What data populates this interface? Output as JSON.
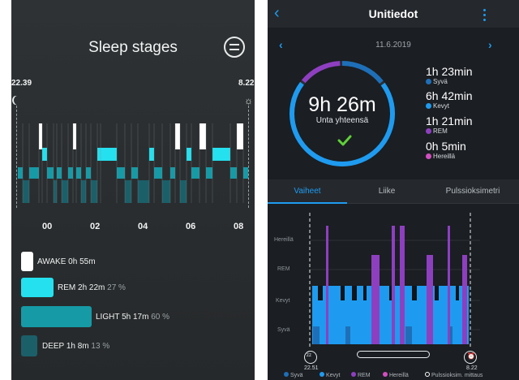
{
  "left_app": {
    "title": "Sleep stages",
    "start_time": "22.39",
    "end_time": "8.22",
    "hour_labels": [
      "00",
      "02",
      "04",
      "06",
      "08"
    ],
    "stages": [
      {
        "label": "AWAKE",
        "duration": "0h 55m",
        "percent": "",
        "color": "#ffffff"
      },
      {
        "label": "REM",
        "duration": "2h 22m",
        "percent": "27 %",
        "color": "#25e0ee"
      },
      {
        "label": "LIGHT",
        "duration": "5h 17m",
        "percent": "60 %",
        "color": "#169aa6"
      },
      {
        "label": "DEEP",
        "duration": "1h 8m",
        "percent": "13 %",
        "color": "#1b5f69"
      }
    ]
  },
  "right_app": {
    "header_title": "Unitiedot",
    "date": "11.6.2019",
    "total_value": "9h 26m",
    "total_label": "Unta yhteensä",
    "stats": [
      {
        "value": "1h 23min",
        "label": "Syvä",
        "color": "#1e6fb8"
      },
      {
        "value": "6h 42min",
        "label": "Kevyt",
        "color": "#1e9bf0"
      },
      {
        "value": "1h 21min",
        "label": "REM",
        "color": "#8e3fc0"
      },
      {
        "value": "0h 5min",
        "label": "Hereillä",
        "color": "#d24fbf"
      }
    ],
    "tabs": [
      "Vaiheet",
      "Liike",
      "Pulssioksimetri"
    ],
    "active_tab": "Vaiheet",
    "y_labels": [
      "Hereillä",
      "REM",
      "Kevyt",
      "Syvä"
    ],
    "start_time": "22.51",
    "end_time": "8.22",
    "legend": [
      {
        "label": "Syvä",
        "color": "#1e6fb8"
      },
      {
        "label": "Kevyt",
        "color": "#1e9bf0"
      },
      {
        "label": "REM",
        "color": "#8e3fc0"
      },
      {
        "label": "Hereillä",
        "color": "#d24fbf"
      },
      {
        "label": "Pulssioksim. mittaus",
        "color": "#ffffff"
      }
    ],
    "ring_progress": {
      "deep": 0.15,
      "light": 0.71,
      "rem": 0.14
    }
  }
}
